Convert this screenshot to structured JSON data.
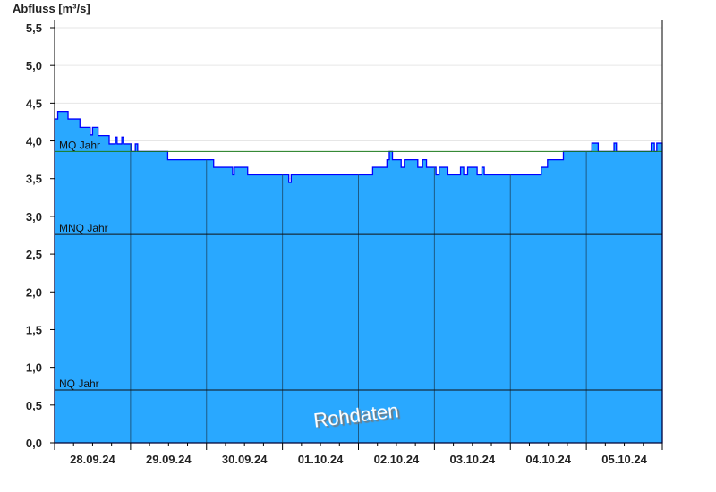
{
  "chart_data": {
    "type": "area",
    "title": "",
    "ylabel": "Abfluss [m³/s]",
    "xlabel": "",
    "ylim": [
      0,
      5.5
    ],
    "yticks": [
      "0,0",
      "0,5",
      "1,0",
      "1,5",
      "2,0",
      "2,5",
      "3,0",
      "3,5",
      "4,0",
      "4,5",
      "5,0",
      "5,5"
    ],
    "x_range": [
      "28.09.2024 00:00",
      "06.10.2024 00:00"
    ],
    "xtick_labels": [
      "28.09.24",
      "29.09.24",
      "30.09.24",
      "01.10.24",
      "02.10.24",
      "03.10.24",
      "04.10.24",
      "05.10.24"
    ],
    "grid": true,
    "watermark": "Rohdaten",
    "colors": {
      "fill": "#29a8ff",
      "line": "#0000ff",
      "mq": "#1a7a1a",
      "ref": "#111111",
      "dayline": "#1d5a85",
      "grid": "#e6e6e6"
    },
    "reference_lines": [
      {
        "label": "MQ Jahr",
        "value": 3.86
      },
      {
        "label": "MNQ Jahr",
        "value": 2.76
      },
      {
        "label": "NQ Jahr",
        "value": 0.7
      }
    ],
    "series": [
      {
        "step": true,
        "points": [
          [
            "28.09.2024 00:00",
            4.29
          ],
          [
            "28.09.2024 01:00",
            4.39
          ],
          [
            "28.09.2024 04:15",
            4.29
          ],
          [
            "28.09.2024 08:00",
            4.18
          ],
          [
            "28.09.2024 11:15",
            4.08
          ],
          [
            "28.09.2024 12:00",
            4.18
          ],
          [
            "28.09.2024 13:45",
            4.07
          ],
          [
            "28.09.2024 17:15",
            3.96
          ],
          [
            "28.09.2024 19:15",
            4.05
          ],
          [
            "28.09.2024 19:45",
            3.96
          ],
          [
            "28.09.2024 21:15",
            4.05
          ],
          [
            "28.09.2024 21:45",
            3.96
          ],
          [
            "29.09.2024 00:15",
            3.86
          ],
          [
            "29.09.2024 01:30",
            3.96
          ],
          [
            "29.09.2024 02:15",
            3.86
          ],
          [
            "29.09.2024 11:45",
            3.75
          ],
          [
            "30.09.2024 02:15",
            3.65
          ],
          [
            "30.09.2024 08:15",
            3.55
          ],
          [
            "30.09.2024 08:45",
            3.65
          ],
          [
            "30.09.2024 13:00",
            3.55
          ],
          [
            "01.10.2024 02:00",
            3.45
          ],
          [
            "01.10.2024 02:45",
            3.55
          ],
          [
            "02.10.2024 04:30",
            3.65
          ],
          [
            "02.10.2024 09:00",
            3.75
          ],
          [
            "02.10.2024 09:45",
            3.86
          ],
          [
            "02.10.2024 10:45",
            3.75
          ],
          [
            "02.10.2024 13:30",
            3.65
          ],
          [
            "02.10.2024 14:30",
            3.75
          ],
          [
            "02.10.2024 18:45",
            3.65
          ],
          [
            "02.10.2024 20:15",
            3.75
          ],
          [
            "02.10.2024 21:30",
            3.65
          ],
          [
            "03.10.2024 00:30",
            3.55
          ],
          [
            "03.10.2024 01:30",
            3.65
          ],
          [
            "03.10.2024 04:15",
            3.55
          ],
          [
            "03.10.2024 08:15",
            3.65
          ],
          [
            "03.10.2024 09:15",
            3.55
          ],
          [
            "03.10.2024 10:30",
            3.65
          ],
          [
            "03.10.2024 13:30",
            3.55
          ],
          [
            "03.10.2024 15:00",
            3.65
          ],
          [
            "03.10.2024 15:45",
            3.55
          ],
          [
            "04.10.2024 09:45",
            3.65
          ],
          [
            "04.10.2024 11:45",
            3.75
          ],
          [
            "04.10.2024 16:45",
            3.86
          ],
          [
            "05.10.2024 01:45",
            3.97
          ],
          [
            "05.10.2024 03:45",
            3.86
          ],
          [
            "05.10.2024 08:45",
            3.97
          ],
          [
            "05.10.2024 09:30",
            3.86
          ],
          [
            "05.10.2024 20:30",
            3.97
          ],
          [
            "05.10.2024 21:30",
            3.86
          ],
          [
            "05.10.2024 22:15",
            3.97
          ],
          [
            "06.10.2024 00:00",
            3.97
          ]
        ]
      }
    ]
  }
}
